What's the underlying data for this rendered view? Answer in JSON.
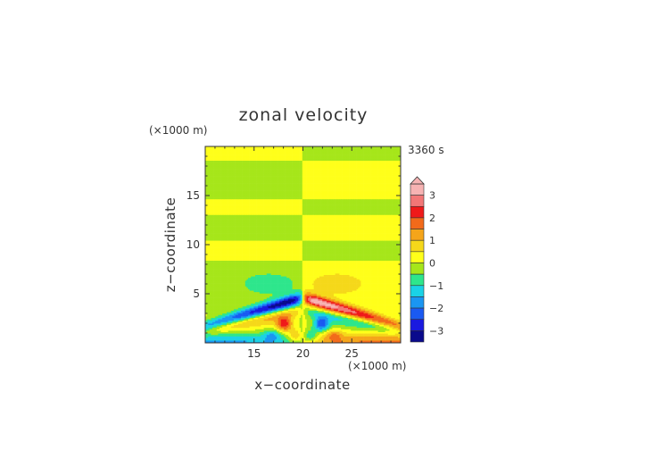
{
  "chart_data": {
    "type": "heatmap",
    "title": "zonal velocity",
    "xlabel": "x−coordinate",
    "ylabel": "z−coordinate",
    "x_unit": "(×1000 m)",
    "y_unit": "(×1000 m)",
    "time_label": "3360 s",
    "xlim": [
      10,
      30
    ],
    "ylim": [
      0,
      20
    ],
    "x_ticks": [
      15,
      20,
      25
    ],
    "y_ticks": [
      5,
      10,
      15
    ],
    "x_tick_labels": [
      "15",
      "20",
      "25"
    ],
    "y_tick_labels": [
      "5",
      "10",
      "15"
    ],
    "colorbar": {
      "ticks": [
        3,
        2,
        1,
        0,
        -1,
        -2,
        -3
      ],
      "tick_labels": [
        "3",
        "2",
        "1",
        "0",
        "−1",
        "−2",
        "−3"
      ],
      "range": [
        -3.5,
        3.5
      ],
      "bands": [
        {
          "lo": 3.0,
          "hi": 3.5,
          "color": "#f7b3b3"
        },
        {
          "lo": 2.5,
          "hi": 3.0,
          "color": "#f27777"
        },
        {
          "lo": 2.0,
          "hi": 2.5,
          "color": "#ef1a1a"
        },
        {
          "lo": 1.5,
          "hi": 2.0,
          "color": "#f26a1a"
        },
        {
          "lo": 1.0,
          "hi": 1.5,
          "color": "#f5a51a"
        },
        {
          "lo": 0.5,
          "hi": 1.0,
          "color": "#f5d81a"
        },
        {
          "lo": 0.0,
          "hi": 0.5,
          "color": "#ffff1a"
        },
        {
          "lo": -0.5,
          "hi": 0.0,
          "color": "#a6e61a"
        },
        {
          "lo": -1.0,
          "hi": -0.5,
          "color": "#2ee68c"
        },
        {
          "lo": -1.5,
          "hi": -1.0,
          "color": "#1ad2e6"
        },
        {
          "lo": -2.0,
          "hi": -1.5,
          "color": "#1a96f2"
        },
        {
          "lo": -2.5,
          "hi": -2.0,
          "color": "#1a5af2"
        },
        {
          "lo": -3.0,
          "hi": -2.5,
          "color": "#1a1ae0"
        },
        {
          "lo": -3.5,
          "hi": -3.0,
          "color": "#0a0a8c"
        }
      ]
    }
  }
}
